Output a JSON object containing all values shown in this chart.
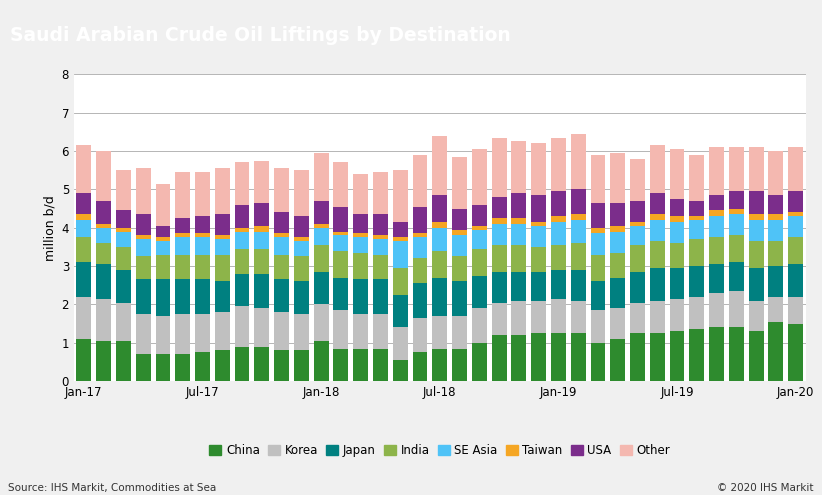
{
  "title": "Saudi Arabian Crude Oil Liftings by Destination",
  "ylabel": "million b/d",
  "source_left": "Source: IHS Markit, Commodities at Sea",
  "source_right": "© 2020 IHS Markit",
  "title_bg_color": "#5a5a5a",
  "title_text_color": "#ffffff",
  "plot_bg_color": "#ffffff",
  "grid_color": "#aaaaaa",
  "ylim": [
    0,
    8
  ],
  "yticks": [
    0,
    1,
    2,
    3,
    4,
    5,
    6,
    7,
    8
  ],
  "xtick_labels": [
    "Jan-17",
    "Jul-17",
    "Jan-18",
    "Jul-18",
    "Jan-19",
    "Jul-19",
    "Jan-20"
  ],
  "xtick_positions": [
    0,
    6,
    12,
    18,
    24,
    30,
    36
  ],
  "series_colors": {
    "China": "#2e8b2e",
    "Korea": "#c0c0c0",
    "Japan": "#008080",
    "India": "#8db44a",
    "SE Asia": "#4fc3f7",
    "Taiwan": "#f5a623",
    "USA": "#7b2d8b",
    "Other": "#f4b8b0"
  },
  "series_names": [
    "China",
    "Korea",
    "Japan",
    "India",
    "SE Asia",
    "Taiwan",
    "USA",
    "Other"
  ],
  "data": {
    "China": [
      1.1,
      1.05,
      1.05,
      0.7,
      0.7,
      0.7,
      0.75,
      0.8,
      0.9,
      0.9,
      0.8,
      0.8,
      1.05,
      0.85,
      0.85,
      0.85,
      0.55,
      0.75,
      0.85,
      0.85,
      1.0,
      1.2,
      1.2,
      1.25,
      1.25,
      1.25,
      1.0,
      1.1,
      1.25,
      1.25,
      1.3,
      1.35,
      1.4,
      1.4,
      1.3,
      1.55,
      1.5
    ],
    "Korea": [
      1.1,
      1.1,
      1.0,
      1.05,
      1.0,
      1.05,
      1.0,
      1.0,
      1.05,
      1.0,
      1.0,
      0.95,
      0.95,
      1.0,
      0.9,
      0.9,
      0.85,
      0.9,
      0.85,
      0.85,
      0.9,
      0.85,
      0.9,
      0.85,
      0.9,
      0.85,
      0.85,
      0.8,
      0.8,
      0.85,
      0.85,
      0.85,
      0.9,
      0.95,
      0.8,
      0.65,
      0.7
    ],
    "Japan": [
      0.9,
      0.9,
      0.85,
      0.9,
      0.95,
      0.9,
      0.9,
      0.8,
      0.85,
      0.9,
      0.85,
      0.85,
      0.85,
      0.85,
      0.9,
      0.9,
      0.85,
      0.9,
      1.0,
      0.9,
      0.85,
      0.8,
      0.75,
      0.75,
      0.75,
      0.8,
      0.75,
      0.8,
      0.8,
      0.85,
      0.8,
      0.8,
      0.75,
      0.75,
      0.85,
      0.8,
      0.85
    ],
    "India": [
      0.65,
      0.55,
      0.6,
      0.6,
      0.65,
      0.65,
      0.65,
      0.7,
      0.65,
      0.65,
      0.65,
      0.65,
      0.7,
      0.7,
      0.7,
      0.65,
      0.7,
      0.65,
      0.7,
      0.65,
      0.7,
      0.7,
      0.7,
      0.65,
      0.65,
      0.7,
      0.7,
      0.65,
      0.7,
      0.7,
      0.65,
      0.7,
      0.7,
      0.7,
      0.7,
      0.65,
      0.7
    ],
    "SE Asia": [
      0.45,
      0.4,
      0.4,
      0.45,
      0.35,
      0.45,
      0.45,
      0.4,
      0.45,
      0.45,
      0.45,
      0.4,
      0.45,
      0.4,
      0.4,
      0.4,
      0.7,
      0.55,
      0.6,
      0.55,
      0.5,
      0.55,
      0.55,
      0.55,
      0.6,
      0.6,
      0.55,
      0.55,
      0.5,
      0.55,
      0.55,
      0.5,
      0.55,
      0.55,
      0.55,
      0.55,
      0.55
    ],
    "Taiwan": [
      0.15,
      0.1,
      0.1,
      0.1,
      0.1,
      0.1,
      0.1,
      0.1,
      0.1,
      0.15,
      0.1,
      0.1,
      0.1,
      0.1,
      0.1,
      0.1,
      0.1,
      0.1,
      0.15,
      0.15,
      0.1,
      0.15,
      0.15,
      0.1,
      0.15,
      0.15,
      0.15,
      0.15,
      0.1,
      0.15,
      0.15,
      0.1,
      0.15,
      0.15,
      0.15,
      0.15,
      0.1
    ],
    "USA": [
      0.55,
      0.6,
      0.45,
      0.55,
      0.3,
      0.4,
      0.45,
      0.55,
      0.6,
      0.6,
      0.55,
      0.55,
      0.6,
      0.65,
      0.5,
      0.55,
      0.4,
      0.7,
      0.7,
      0.55,
      0.55,
      0.55,
      0.65,
      0.7,
      0.65,
      0.65,
      0.65,
      0.6,
      0.55,
      0.55,
      0.45,
      0.4,
      0.4,
      0.45,
      0.6,
      0.5,
      0.55
    ],
    "Other": [
      1.25,
      1.3,
      1.05,
      1.2,
      1.1,
      1.2,
      1.15,
      1.2,
      1.1,
      1.1,
      1.15,
      1.2,
      1.25,
      1.15,
      1.05,
      1.1,
      1.35,
      1.35,
      1.55,
      1.35,
      1.45,
      1.55,
      1.35,
      1.35,
      1.4,
      1.45,
      1.25,
      1.3,
      1.1,
      1.25,
      1.3,
      1.2,
      1.25,
      1.15,
      1.15,
      1.15,
      1.15
    ]
  }
}
